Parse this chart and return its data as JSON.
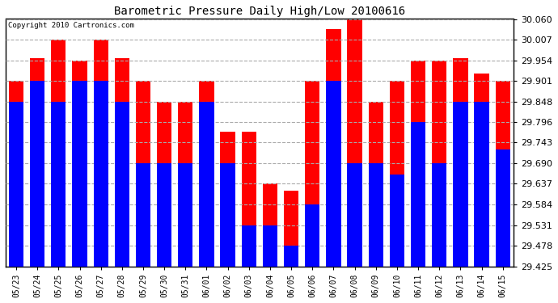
{
  "title": "Barometric Pressure Daily High/Low 20100616",
  "copyright": "Copyright 2010 Cartronics.com",
  "dates": [
    "05/23",
    "05/24",
    "05/25",
    "05/26",
    "05/27",
    "05/28",
    "05/29",
    "05/30",
    "05/31",
    "06/01",
    "06/02",
    "06/03",
    "06/04",
    "06/05",
    "06/06",
    "06/07",
    "06/08",
    "06/09",
    "06/10",
    "06/11",
    "06/12",
    "06/13",
    "06/14",
    "06/15"
  ],
  "highs": [
    29.901,
    29.96,
    30.007,
    29.954,
    30.007,
    29.96,
    29.901,
    29.848,
    29.848,
    29.901,
    29.77,
    29.77,
    29.637,
    29.62,
    29.901,
    30.035,
    30.06,
    29.848,
    29.901,
    29.954,
    29.954,
    29.96,
    29.92,
    29.901
  ],
  "lows": [
    29.848,
    29.901,
    29.848,
    29.901,
    29.901,
    29.848,
    29.69,
    29.69,
    29.69,
    29.848,
    29.69,
    29.531,
    29.531,
    29.478,
    29.584,
    29.901,
    29.69,
    29.69,
    29.66,
    29.796,
    29.69,
    29.848,
    29.848,
    29.725
  ],
  "high_color": "#ff0000",
  "low_color": "#0000ff",
  "bg_color": "#ffffff",
  "grid_color": "#aaaaaa",
  "ymin": 29.425,
  "ymax": 30.06,
  "yticks": [
    29.425,
    29.478,
    29.531,
    29.584,
    29.637,
    29.69,
    29.743,
    29.796,
    29.848,
    29.901,
    29.954,
    30.007,
    30.06
  ]
}
